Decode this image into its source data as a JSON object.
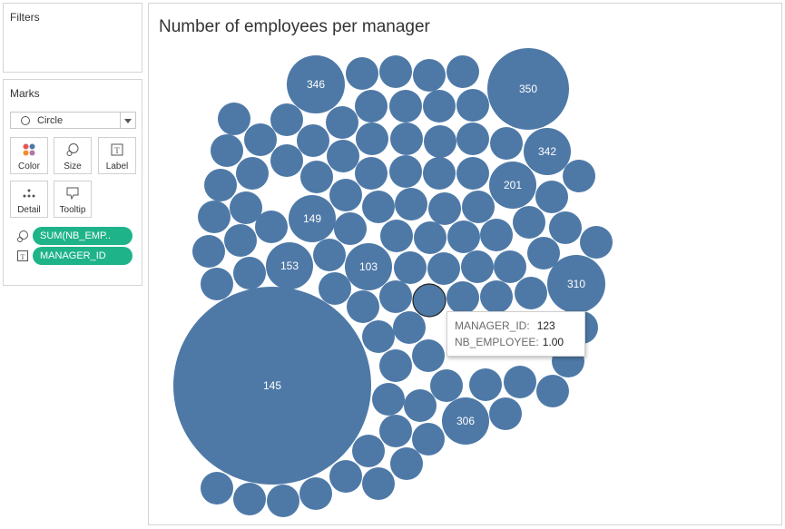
{
  "filters": {
    "title": "Filters"
  },
  "marks": {
    "title": "Marks",
    "mark_type": "Circle",
    "cards": [
      {
        "label": "Color",
        "icon": "color-dots-icon"
      },
      {
        "label": "Size",
        "icon": "size-icon"
      },
      {
        "label": "Label",
        "icon": "label-icon"
      },
      {
        "label": "Detail",
        "icon": "detail-icon"
      },
      {
        "label": "Tooltip",
        "icon": "tooltip-icon"
      }
    ],
    "pills": [
      {
        "text": "SUM(NB_EMP..",
        "icon": "size-icon"
      },
      {
        "text": "MANAGER_ID",
        "icon": "label-icon"
      }
    ]
  },
  "colors": {
    "bubble": "#4e79a7",
    "pill": "#1fb38a",
    "hover_outline": "#222222"
  },
  "chart_data": {
    "type": "packed-bubble",
    "title": "Number of employees per manager",
    "measure": "NB_EMPLOYEE",
    "dimension": "MANAGER_ID",
    "labeled_bubbles": [
      {
        "label": "145"
      },
      {
        "label": "350"
      },
      {
        "label": "346"
      },
      {
        "label": "342"
      },
      {
        "label": "201"
      },
      {
        "label": "149"
      },
      {
        "label": "153"
      },
      {
        "label": "103"
      },
      {
        "label": "310"
      },
      {
        "label": "306"
      }
    ],
    "highlighted": {
      "label": "123",
      "value": 1.0
    }
  },
  "tooltip": {
    "rows": [
      {
        "key": "MANAGER_ID:",
        "value": "123"
      },
      {
        "key": "NB_EMPLOYEE:",
        "value": "1.00"
      }
    ]
  }
}
